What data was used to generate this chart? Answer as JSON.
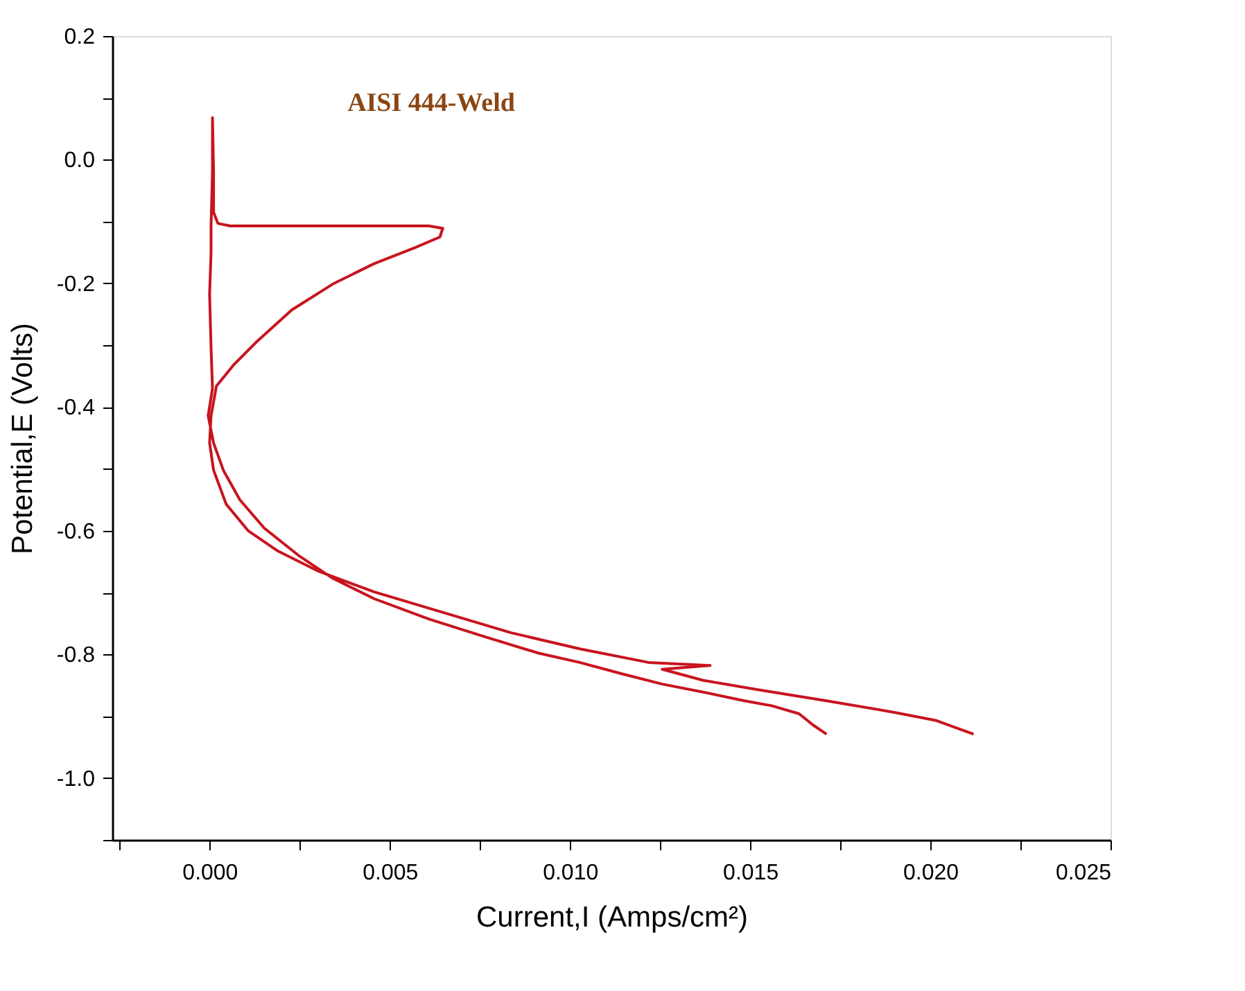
{
  "chart_data": {
    "type": "line",
    "xlabel": "Current,I (Amps/cm²)",
    "ylabel": "Potential,E (Volts)",
    "annotations": [
      "AISI 444-Weld"
    ],
    "xlim": [
      -0.0027,
      0.025
    ],
    "ylim": [
      -1.1,
      0.2
    ],
    "xticks": [
      {
        "value": -0.0025,
        "label": null
      },
      "0.000",
      {
        "value": 0.0025,
        "label": null
      },
      {
        "value": 0.005,
        "label": "0.005"
      },
      {
        "value": 0.0075,
        "label": null
      },
      {
        "value": 0.01,
        "label": "0.010"
      },
      {
        "value": 0.0125,
        "label": null
      },
      {
        "value": 0.015,
        "label": "0.015"
      },
      {
        "value": 0.0175,
        "label": null
      },
      {
        "value": 0.02,
        "label": "0.020"
      },
      {
        "value": 0.0225,
        "label": null
      },
      {
        "value": 0.025,
        "label": "0.025"
      }
    ],
    "yticks": [
      {
        "value": -1.1,
        "label": null
      },
      {
        "value": -1.0,
        "label": "-1.0"
      },
      {
        "value": -0.9,
        "label": null
      },
      -0.8,
      {
        "value": -0.7,
        "label": null
      },
      -0.6,
      {
        "value": -0.5,
        "label": null
      },
      -0.4,
      {
        "value": -0.3,
        "label": null
      },
      -0.2,
      {
        "value": -0.1,
        "label": null
      },
      {
        "value": 0,
        "label": "0.0"
      },
      {
        "value": 0.1,
        "label": null
      },
      0.2
    ],
    "grid": false,
    "marker": "none",
    "line_style": "solid",
    "series": [
      {
        "color": "#c8141e",
        "x": [
          0.01712,
          0.01674,
          0.01636,
          0.0156,
          0.01484,
          0.0137,
          0.01256,
          0.01142,
          0.01027,
          0.00913,
          0.00761,
          0.00609,
          0.00457,
          0.00342,
          0.00247,
          0.00152,
          0.00084,
          0.00038,
          0.00011,
          -4e-05,
          8e-05,
          4e-05,
          0,
          4e-05,
          4e-05,
          8e-05,
          8e-05,
          0.00011,
          0.00011,
          0.00023,
          0.00057,
          0.00381,
          0.00609,
          0.00647,
          0.00639,
          0.00571,
          0.00457,
          0.00342,
          0.00228,
          0.00133,
          0.00068,
          0.00019,
          4e-05,
          0,
          0.00011,
          0.00046,
          0.00107,
          0.0019,
          0.00304,
          0.00457,
          0.00647,
          0.00837,
          0.01027,
          0.01218,
          0.01389,
          0.01256,
          0.0137,
          0.01522,
          0.01712,
          0.01903,
          0.02017,
          0.0212
        ],
        "values": [
          -0.929,
          -0.914,
          -0.896,
          -0.883,
          -0.875,
          -0.861,
          -0.848,
          -0.831,
          -0.813,
          -0.798,
          -0.771,
          -0.743,
          -0.71,
          -0.677,
          -0.64,
          -0.596,
          -0.55,
          -0.502,
          -0.458,
          -0.414,
          -0.37,
          -0.304,
          -0.217,
          -0.151,
          -0.107,
          -0.019,
          0.068,
          -0.019,
          -0.085,
          -0.103,
          -0.107,
          -0.107,
          -0.107,
          -0.111,
          -0.125,
          -0.142,
          -0.168,
          -0.201,
          -0.243,
          -0.293,
          -0.331,
          -0.366,
          -0.414,
          -0.458,
          -0.502,
          -0.557,
          -0.6,
          -0.633,
          -0.666,
          -0.699,
          -0.732,
          -0.765,
          -0.791,
          -0.813,
          -0.818,
          -0.824,
          -0.842,
          -0.857,
          -0.875,
          -0.894,
          -0.907,
          -0.929
        ]
      }
    ]
  }
}
